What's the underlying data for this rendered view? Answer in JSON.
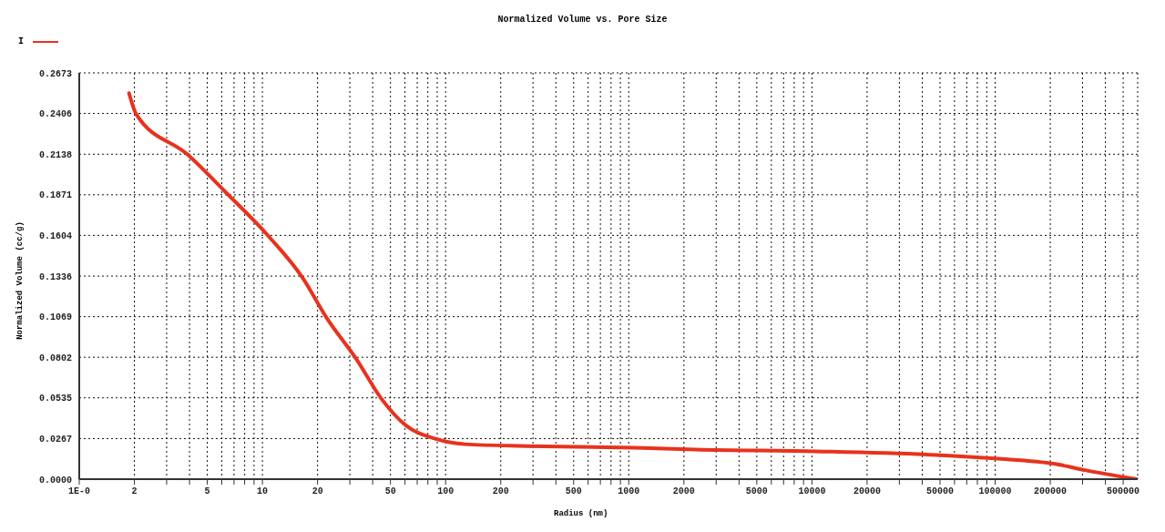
{
  "chart_data": {
    "type": "line",
    "title": "Normalized Volume vs. Pore Size",
    "xlabel": "Radius (nm)",
    "ylabel": "Normalized Volume (cc/g)",
    "log": "x",
    "grid": true,
    "legend": "top left",
    "marker": "none",
    "line_style": "solid",
    "xlim": [
      1,
      600000
    ],
    "xticks": [
      {
        "value": 1,
        "label": "1E-0"
      },
      2,
      {
        "value": 3,
        "label": null
      },
      {
        "value": 4,
        "label": null
      },
      5,
      {
        "value": 6,
        "label": null
      },
      {
        "value": 7,
        "label": null
      },
      {
        "value": 8,
        "label": null
      },
      {
        "value": 9,
        "label": null
      },
      10,
      20,
      {
        "value": 30,
        "label": null
      },
      {
        "value": 40,
        "label": null
      },
      50,
      {
        "value": 60,
        "label": null
      },
      {
        "value": 70,
        "label": null
      },
      {
        "value": 80,
        "label": null
      },
      {
        "value": 90,
        "label": null
      },
      100,
      200,
      {
        "value": 300,
        "label": null
      },
      {
        "value": 400,
        "label": null
      },
      500,
      {
        "value": 600,
        "label": null
      },
      {
        "value": 700,
        "label": null
      },
      {
        "value": 800,
        "label": null
      },
      {
        "value": 900,
        "label": null
      },
      1000,
      2000,
      {
        "value": 3000,
        "label": null
      },
      {
        "value": 4000,
        "label": null
      },
      5000,
      {
        "value": 6000,
        "label": null
      },
      {
        "value": 7000,
        "label": null
      },
      {
        "value": 8000,
        "label": null
      },
      {
        "value": 9000,
        "label": null
      },
      10000,
      20000,
      {
        "value": 30000,
        "label": null
      },
      {
        "value": 40000,
        "label": null
      },
      50000,
      {
        "value": 60000,
        "label": null
      },
      {
        "value": 70000,
        "label": null
      },
      {
        "value": 80000,
        "label": null
      },
      {
        "value": 90000,
        "label": null
      },
      100000,
      200000,
      {
        "value": 300000,
        "label": null
      },
      {
        "value": 400000,
        "label": null
      },
      500000
    ],
    "ylim": [
      0,
      0.2673
    ],
    "yticks": [
      {
        "value": 0,
        "label": "0.0000"
      },
      0.0267,
      0.0535,
      0.0802,
      0.1069,
      0.1336,
      0.1604,
      0.1871,
      0.2138,
      0.2406,
      0.2673
    ],
    "x": [
      1.87,
      2.05,
      3.9,
      6.3,
      10.9,
      16.5,
      22.4,
      32.8,
      44.5,
      60.6,
      88,
      128,
      275,
      1080,
      2330,
      10500,
      47800,
      100000,
      213000,
      310000,
      590000
    ],
    "series": [
      {
        "name": "I",
        "color": "#e8321e",
        "values": [
          0.254,
          0.24,
          0.2136,
          0.1888,
          0.1593,
          0.1328,
          0.1062,
          0.0785,
          0.0531,
          0.0354,
          0.0266,
          0.023,
          0.0218,
          0.0207,
          0.0195,
          0.0183,
          0.0159,
          0.0136,
          0.01,
          0.0059,
          0.0
        ]
      }
    ]
  }
}
